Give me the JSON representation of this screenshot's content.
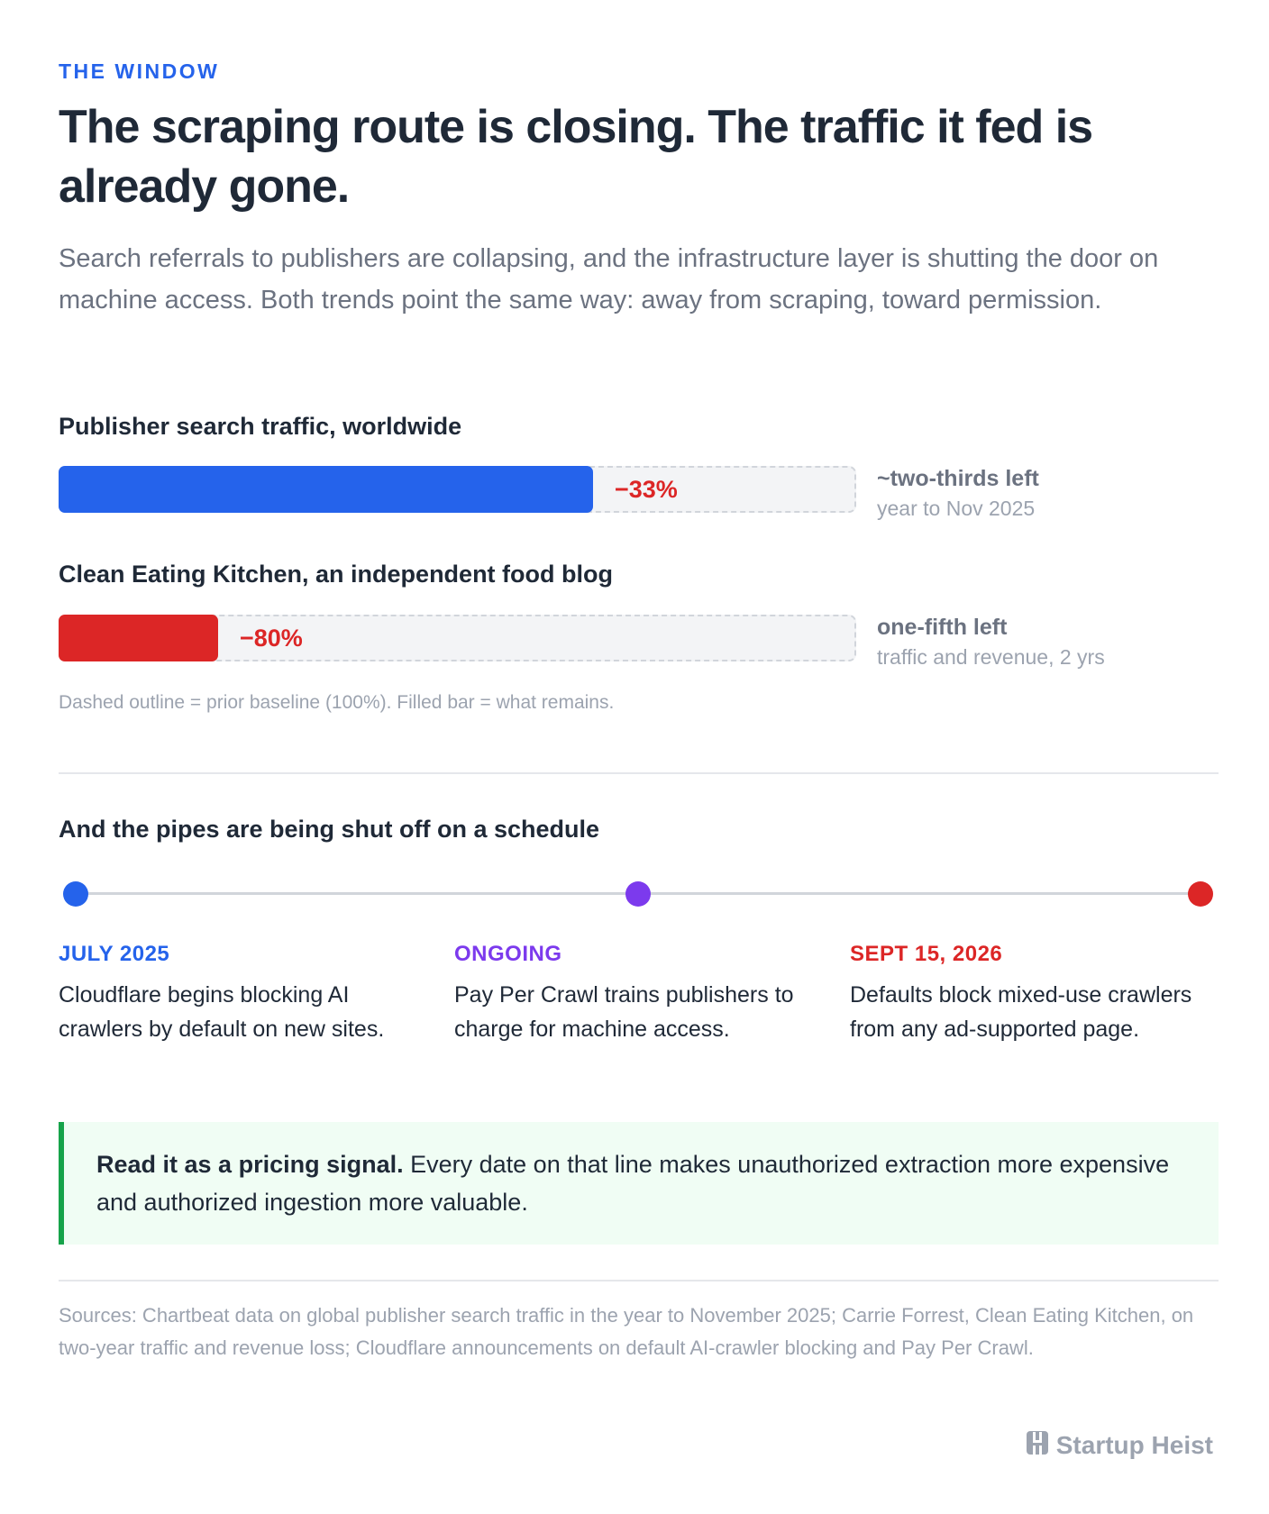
{
  "header": {
    "eyebrow": "THE WINDOW",
    "title": "The scraping route is closing. The traffic it fed is already gone.",
    "subtitle": "Search referrals to publishers are collapsing, and the infrastructure layer is shutting the door on machine access. Both trends point the same way: away from scraping, toward permission."
  },
  "chart_data": {
    "type": "bar",
    "orientation": "horizontal",
    "baseline_percent": 100,
    "bars": [
      {
        "label": "Publisher search traffic, worldwide",
        "change_label": "−33%",
        "remaining_percent": 67,
        "color": "#2563eb",
        "side_main": "~two-thirds left",
        "side_sub": "year to Nov 2025"
      },
      {
        "label": "Clean Eating Kitchen, an independent food blog",
        "change_label": "−80%",
        "remaining_percent": 20,
        "color": "#dc2626",
        "side_main": "one-fifth left",
        "side_sub": "traffic and revenue, 2 yrs"
      }
    ],
    "note": "Dashed outline = prior baseline (100%). Filled bar = what remains."
  },
  "timeline": {
    "title": "And the pipes are being shut off on a schedule",
    "events": [
      {
        "date": "JULY 2025",
        "text": "Cloudflare begins blocking AI crawlers by default on new sites.",
        "color": "#2563eb"
      },
      {
        "date": "ONGOING",
        "text": "Pay Per Crawl trains publishers to charge for machine access.",
        "color": "#7c3aed"
      },
      {
        "date": "SEPT 15, 2026",
        "text": "Defaults block mixed-use crawlers from any ad-supported page.",
        "color": "#dc2626"
      }
    ]
  },
  "callout": {
    "lead": "Read it as a pricing signal.",
    "text": " Every date on that line makes unauthorized extraction more expensive and authorized ingestion more valuable."
  },
  "sources": "Sources: Chartbeat data on global publisher search traffic in the year to November 2025; Carrie Forrest, Clean Eating Kitchen, on two-year traffic and revenue loss; Cloudflare announcements on default AI-crawler blocking and Pay Per Crawl.",
  "brand": {
    "name": "Startup Heist",
    "icon": "building-icon"
  }
}
